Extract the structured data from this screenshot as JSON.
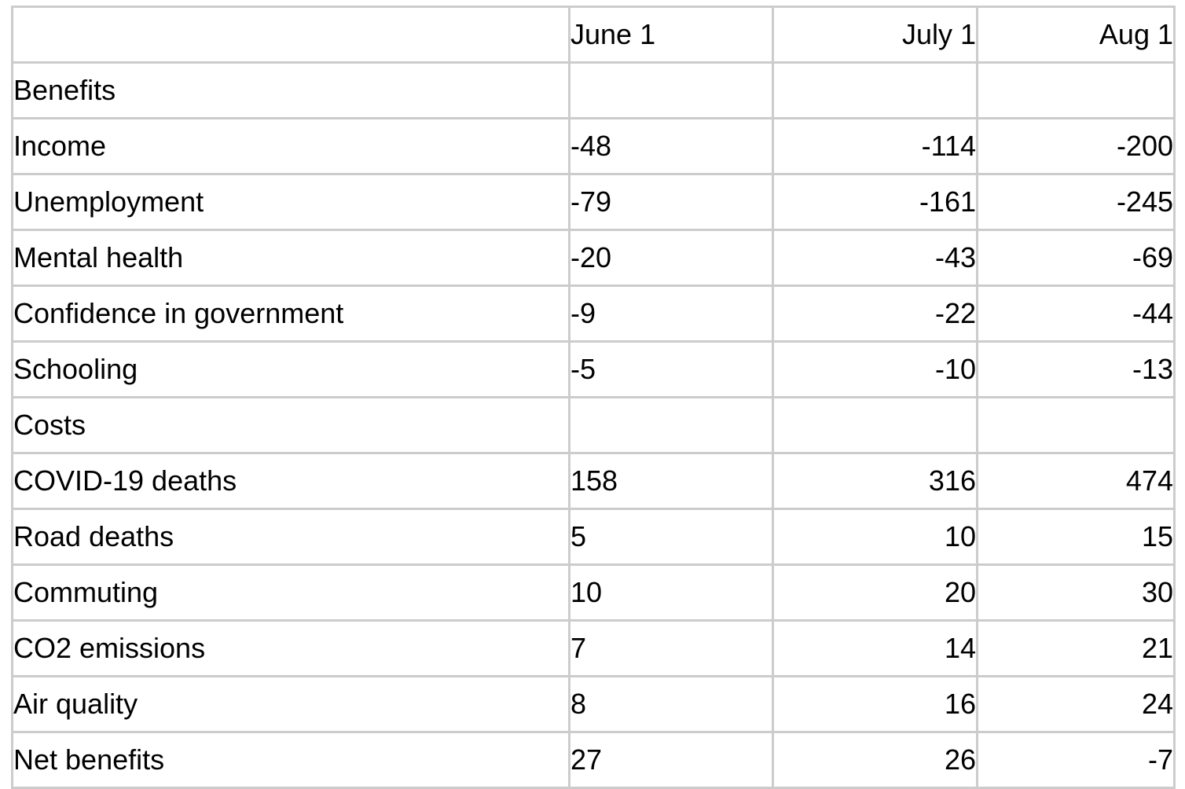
{
  "table": {
    "columns": [
      {
        "label": ""
      },
      {
        "label": "June 1"
      },
      {
        "label": "July 1"
      },
      {
        "label": "Aug 1"
      }
    ],
    "rows": [
      {
        "label": "Benefits",
        "type": "section",
        "values": [
          "",
          "",
          ""
        ]
      },
      {
        "label": "Income",
        "type": "item",
        "values": [
          "-48",
          "-114",
          "-200"
        ]
      },
      {
        "label": "Unemployment",
        "type": "item",
        "values": [
          "-79",
          "-161",
          "-245"
        ]
      },
      {
        "label": "Mental health",
        "type": "item",
        "values": [
          "-20",
          "-43",
          "-69"
        ]
      },
      {
        "label": "Confidence in government",
        "type": "item",
        "values": [
          "-9",
          "-22",
          "-44"
        ]
      },
      {
        "label": "Schooling",
        "type": "item",
        "values": [
          "-5",
          "-10",
          "-13"
        ]
      },
      {
        "label": "Costs",
        "type": "section",
        "values": [
          "",
          "",
          ""
        ]
      },
      {
        "label": "COVID-19 deaths",
        "type": "item",
        "values": [
          "158",
          "316",
          "474"
        ]
      },
      {
        "label": "Road deaths",
        "type": "item",
        "values": [
          "5",
          "10",
          "15"
        ]
      },
      {
        "label": "Commuting",
        "type": "item",
        "values": [
          "10",
          "20",
          "30"
        ]
      },
      {
        "label": "CO2 emissions",
        "type": "item",
        "values": [
          "7",
          "14",
          "21"
        ]
      },
      {
        "label": "Air quality",
        "type": "item",
        "values": [
          "8",
          "16",
          "24"
        ]
      },
      {
        "label": "Net benefits",
        "type": "total",
        "values": [
          "27",
          "26",
          "-7"
        ]
      }
    ]
  },
  "colors": {
    "border": "#cccccc",
    "text": "#000000",
    "background": "#ffffff"
  }
}
